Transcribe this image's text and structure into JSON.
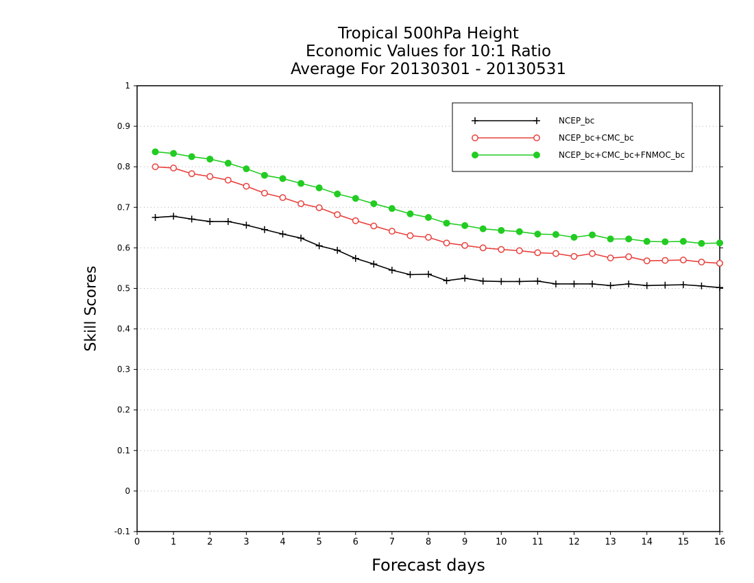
{
  "chart_data": {
    "type": "line",
    "title_lines": [
      "Tropical 500hPa Height",
      "Economic Values for 10:1 Ratio",
      "Average For 20130301 - 20130531"
    ],
    "xlabel": "Forecast days",
    "ylabel": "Skill Scores",
    "xlim": [
      0,
      16
    ],
    "ylim": [
      -0.1,
      1
    ],
    "xticks": [
      0,
      1,
      2,
      3,
      4,
      5,
      6,
      7,
      8,
      9,
      10,
      11,
      12,
      13,
      14,
      15,
      16
    ],
    "yticks": [
      -0.1,
      0,
      0.1,
      0.2,
      0.3,
      0.4,
      0.5,
      0.6,
      0.7,
      0.8,
      0.9,
      1
    ],
    "ytick_labels": [
      "-0.1",
      "0",
      "0.1",
      "0.2",
      "0.3",
      "0.4",
      "0.5",
      "0.6",
      "0.7",
      "0.8",
      "0.9",
      "1"
    ],
    "grid": "horizontal dotted",
    "legend_position": "top-right",
    "x": [
      0.5,
      1,
      1.5,
      2,
      2.5,
      3,
      3.5,
      4,
      4.5,
      5,
      5.5,
      6,
      6.5,
      7,
      7.5,
      8,
      8.5,
      9,
      9.5,
      10,
      10.5,
      11,
      11.5,
      12,
      12.5,
      13,
      13.5,
      14,
      14.5,
      15,
      15.5,
      16
    ],
    "series": [
      {
        "name": "NCEP_bc",
        "color": "#000000",
        "marker": "plus",
        "values": [
          0.675,
          0.678,
          0.671,
          0.665,
          0.665,
          0.656,
          0.645,
          0.634,
          0.624,
          0.605,
          0.594,
          0.574,
          0.56,
          0.545,
          0.534,
          0.535,
          0.519,
          0.525,
          0.518,
          0.517,
          0.517,
          0.518,
          0.511,
          0.511,
          0.511,
          0.507,
          0.511,
          0.507,
          0.508,
          0.509,
          0.506,
          0.502
        ]
      },
      {
        "name": "NCEP_bc+CMC_bc",
        "color": "#e8403c",
        "marker": "open-circle",
        "values": [
          0.8,
          0.797,
          0.783,
          0.776,
          0.767,
          0.752,
          0.735,
          0.724,
          0.709,
          0.699,
          0.682,
          0.667,
          0.654,
          0.641,
          0.63,
          0.626,
          0.612,
          0.606,
          0.6,
          0.596,
          0.593,
          0.588,
          0.586,
          0.579,
          0.586,
          0.575,
          0.578,
          0.568,
          0.569,
          0.57,
          0.565,
          0.562
        ]
      },
      {
        "name": "NCEP_bc+CMC_bc+FNMOC_bc",
        "color": "#22cc22",
        "marker": "filled-circle",
        "values": [
          0.837,
          0.833,
          0.825,
          0.819,
          0.809,
          0.795,
          0.779,
          0.771,
          0.759,
          0.748,
          0.733,
          0.722,
          0.709,
          0.697,
          0.684,
          0.675,
          0.661,
          0.655,
          0.647,
          0.643,
          0.64,
          0.634,
          0.633,
          0.626,
          0.632,
          0.622,
          0.622,
          0.616,
          0.615,
          0.616,
          0.611,
          0.612
        ]
      }
    ]
  }
}
